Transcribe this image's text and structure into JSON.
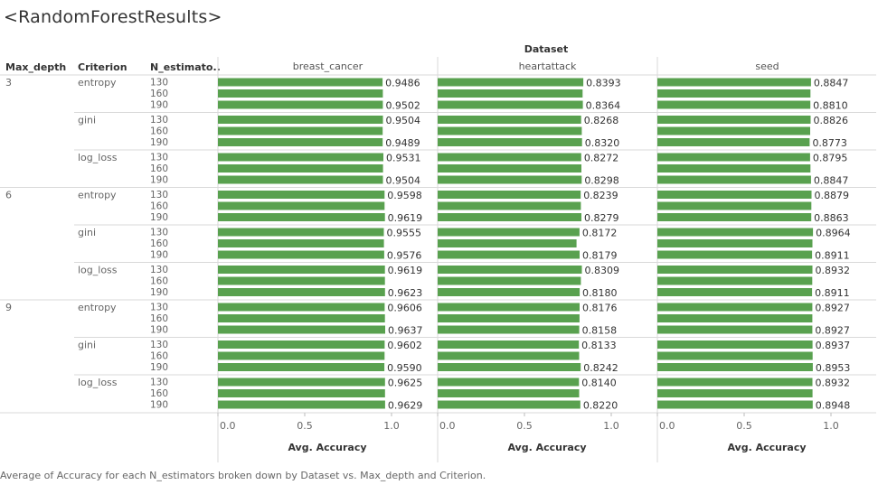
{
  "title": "<RandomForestResults>",
  "footer": "Average of Accuracy for each N_estimators broken down by Dataset vs. Max_depth and Criterion.",
  "headers": {
    "max_depth": "Max_depth",
    "criterion": "Criterion",
    "n_estimators": "N_estimato..",
    "dataset": "Dataset"
  },
  "colors": {
    "bar": "#59a14f"
  },
  "chart_data": {
    "type": "bar",
    "orientation": "horizontal",
    "datasets": [
      "breast_cancer",
      "heartattack",
      "seed"
    ],
    "max_depths": [
      "3",
      "6",
      "9"
    ],
    "criteria": [
      "entropy",
      "gini",
      "log_loss"
    ],
    "n_estimators": [
      "130",
      "160",
      "190"
    ],
    "xlabel": "Avg. Accuracy",
    "xlim": [
      0,
      1.0
    ],
    "xticks": [
      "0.0",
      "0.5",
      "1.0"
    ],
    "values": {
      "breast_cancer": [
        [
          [
            0.9486,
            0.95,
            0.9502
          ],
          [
            0.9504,
            0.949,
            0.9489
          ],
          [
            0.9531,
            0.951,
            0.9504
          ]
        ],
        [
          [
            0.9598,
            0.96,
            0.9619
          ],
          [
            0.9555,
            0.956,
            0.9576
          ],
          [
            0.9619,
            0.962,
            0.9623
          ]
        ],
        [
          [
            0.9606,
            0.962,
            0.9637
          ],
          [
            0.9602,
            0.96,
            0.959
          ],
          [
            0.9625,
            0.9625,
            0.9629
          ]
        ]
      ],
      "heartattack": [
        [
          [
            0.8393,
            0.835,
            0.8364
          ],
          [
            0.8268,
            0.83,
            0.832
          ],
          [
            0.8272,
            0.828,
            0.8298
          ]
        ],
        [
          [
            0.8239,
            0.825,
            0.8279
          ],
          [
            0.8172,
            0.8,
            0.8179
          ],
          [
            0.8309,
            0.825,
            0.818
          ]
        ],
        [
          [
            0.8176,
            0.817,
            0.8158
          ],
          [
            0.8133,
            0.815,
            0.8242
          ],
          [
            0.814,
            0.815,
            0.822
          ]
        ]
      ],
      "seed": [
        [
          [
            0.8847,
            0.882,
            0.881
          ],
          [
            0.8826,
            0.88,
            0.8773
          ],
          [
            0.8795,
            0.882,
            0.8847
          ]
        ],
        [
          [
            0.8879,
            0.887,
            0.8863
          ],
          [
            0.8964,
            0.893,
            0.8911
          ],
          [
            0.8932,
            0.892,
            0.8911
          ]
        ],
        [
          [
            0.8927,
            0.8927,
            0.8927
          ],
          [
            0.8937,
            0.8945,
            0.8953
          ],
          [
            0.8932,
            0.894,
            0.8948
          ]
        ]
      ]
    },
    "labeled": {
      "breast_cancer": [
        [
          [
            "0.9486",
            "",
            "0.9502"
          ],
          [
            "0.9504",
            "",
            "0.9489"
          ],
          [
            "0.9531",
            "",
            "0.9504"
          ]
        ],
        [
          [
            "0.9598",
            "",
            "0.9619"
          ],
          [
            "0.9555",
            "",
            "0.9576"
          ],
          [
            "0.9619",
            "",
            "0.9623"
          ]
        ],
        [
          [
            "0.9606",
            "",
            "0.9637"
          ],
          [
            "0.9602",
            "",
            "0.9590"
          ],
          [
            "0.9625",
            "",
            "0.9629"
          ]
        ]
      ],
      "heartattack": [
        [
          [
            "0.8393",
            "",
            "0.8364"
          ],
          [
            "0.8268",
            "",
            "0.8320"
          ],
          [
            "0.8272",
            "",
            "0.8298"
          ]
        ],
        [
          [
            "0.8239",
            "",
            "0.8279"
          ],
          [
            "0.8172",
            "",
            "0.8179"
          ],
          [
            "0.8309",
            "",
            "0.8180"
          ]
        ],
        [
          [
            "0.8176",
            "",
            "0.8158"
          ],
          [
            "0.8133",
            "",
            "0.8242"
          ],
          [
            "0.8140",
            "",
            "0.8220"
          ]
        ]
      ],
      "seed": [
        [
          [
            "0.8847",
            "",
            "0.8810"
          ],
          [
            "0.8826",
            "",
            "0.8773"
          ],
          [
            "0.8795",
            "",
            "0.8847"
          ]
        ],
        [
          [
            "0.8879",
            "",
            "0.8863"
          ],
          [
            "0.8964",
            "",
            "0.8911"
          ],
          [
            "0.8932",
            "",
            "0.8911"
          ]
        ],
        [
          [
            "0.8927",
            "",
            "0.8927"
          ],
          [
            "0.8937",
            "",
            "0.8953"
          ],
          [
            "0.8932",
            "",
            "0.8948"
          ]
        ]
      ]
    }
  }
}
